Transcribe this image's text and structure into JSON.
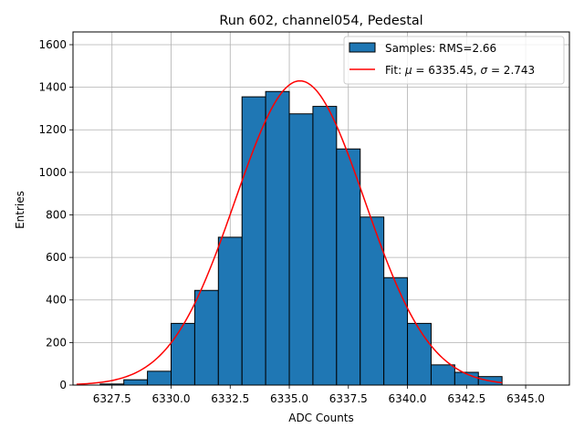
{
  "chart_data": {
    "type": "bar",
    "title": "Run 602, channel054, Pedestal",
    "xlabel": "ADC Counts",
    "ylabel": "Entries",
    "xlim": [
      6325.85,
      6346.85
    ],
    "ylim": [
      0,
      1660
    ],
    "xticks": [
      6327.5,
      6330.0,
      6332.5,
      6335.0,
      6337.5,
      6340.0,
      6342.5,
      6345.0
    ],
    "xtick_labels": [
      "6327.5",
      "6330.0",
      "6332.5",
      "6335.0",
      "6337.5",
      "6340.0",
      "6342.5",
      "6345.0"
    ],
    "yticks": [
      0,
      200,
      400,
      600,
      800,
      1000,
      1200,
      1400,
      1600
    ],
    "ytick_labels": [
      "0",
      "200",
      "400",
      "600",
      "800",
      "1000",
      "1200",
      "1400",
      "1600"
    ],
    "grid": true,
    "legend_position": "top-right",
    "histogram": {
      "name": "Samples: RMS=2.66",
      "color": "#1f77b4",
      "edge_color": "#000000",
      "bins": [
        {
          "x0": 6327.0,
          "x1": 6328.0,
          "count": 5
        },
        {
          "x0": 6328.0,
          "x1": 6329.0,
          "count": 25
        },
        {
          "x0": 6329.0,
          "x1": 6330.0,
          "count": 65
        },
        {
          "x0": 6330.0,
          "x1": 6331.0,
          "count": 290
        },
        {
          "x0": 6331.0,
          "x1": 6332.0,
          "count": 445
        },
        {
          "x0": 6332.0,
          "x1": 6333.0,
          "count": 695
        },
        {
          "x0": 6333.0,
          "x1": 6334.0,
          "count": 1355
        },
        {
          "x0": 6334.0,
          "x1": 6335.0,
          "count": 1380
        },
        {
          "x0": 6335.0,
          "x1": 6336.0,
          "count": 1275
        },
        {
          "x0": 6336.0,
          "x1": 6337.0,
          "count": 1310
        },
        {
          "x0": 6337.0,
          "x1": 6338.0,
          "count": 1110
        },
        {
          "x0": 6338.0,
          "x1": 6339.0,
          "count": 790
        },
        {
          "x0": 6339.0,
          "x1": 6340.0,
          "count": 505
        },
        {
          "x0": 6340.0,
          "x1": 6341.0,
          "count": 290
        },
        {
          "x0": 6341.0,
          "x1": 6342.0,
          "count": 95
        },
        {
          "x0": 6342.0,
          "x1": 6343.0,
          "count": 60
        },
        {
          "x0": 6343.0,
          "x1": 6344.0,
          "count": 40
        }
      ]
    },
    "fit": {
      "name_prefix": "Fit: ",
      "mu_symbol": "μ",
      "mu_text": " = 6335.45, ",
      "sigma_symbol": "σ",
      "sigma_text": " = 2.743",
      "color": "#ff0000",
      "mu": 6335.45,
      "sigma": 2.743,
      "amplitude": 1430,
      "x_range": [
        6326.0,
        6344.0
      ]
    }
  }
}
